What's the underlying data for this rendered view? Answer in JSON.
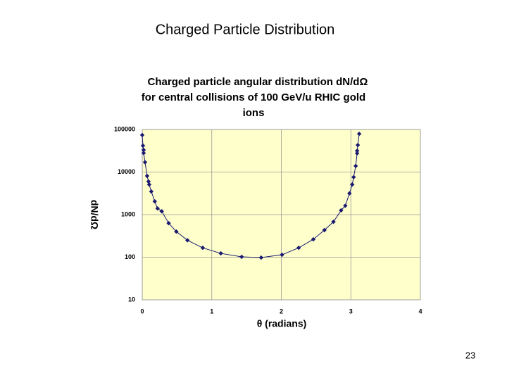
{
  "slide_title": "Charged Particle Distribution",
  "page_number": "23",
  "chart_data": {
    "type": "line",
    "title": [
      "Charged particle angular distribution dN/dΩ",
      "for central collisions of 100 GeV/u RHIC gold",
      "ions"
    ],
    "x_label": "θ (radians)",
    "y_label": "dN/dΩ",
    "x": [
      0.0,
      0.01,
      0.02,
      0.02,
      0.04,
      0.07,
      0.09,
      0.1,
      0.13,
      0.18,
      0.22,
      0.28,
      0.38,
      0.49,
      0.65,
      0.87,
      1.13,
      1.43,
      1.71,
      2.01,
      2.25,
      2.46,
      2.62,
      2.75,
      2.86,
      2.92,
      2.98,
      3.02,
      3.04,
      3.07,
      3.09,
      3.09,
      3.1,
      3.12
    ],
    "values": [
      74000,
      41700,
      33000,
      28000,
      17000,
      8100,
      6000,
      5100,
      3500,
      2050,
      1400,
      1200,
      630,
      400,
      250,
      166,
      123,
      102,
      98,
      114,
      166,
      263,
      433,
      680,
      1260,
      1620,
      3160,
      5100,
      7600,
      13900,
      27500,
      31600,
      43000,
      79000
    ],
    "color": "#1a1a70",
    "xlim": [
      0,
      4
    ],
    "xticks": [
      0,
      1,
      2,
      3,
      4
    ],
    "ylim": [
      10,
      100000
    ],
    "yticks": [
      10,
      100,
      1000,
      10000,
      100000
    ],
    "ylog": true,
    "grid": true,
    "background": "#ffffcc"
  }
}
